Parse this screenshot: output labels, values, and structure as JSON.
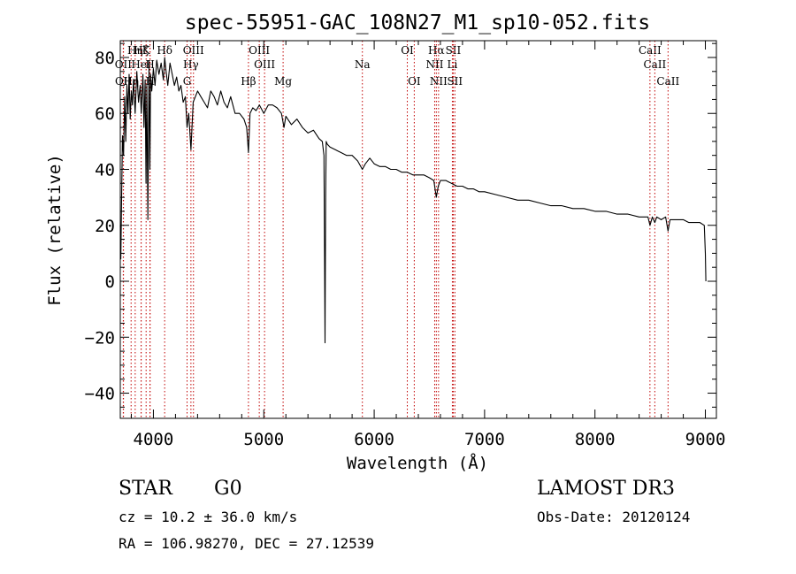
{
  "chart_data": {
    "type": "line",
    "title": "spec-55951-GAC_108N27_M1_sp10-052.fits",
    "xlabel": "Wavelength (Å)",
    "ylabel": "Flux (relative)",
    "xlim": [
      3700,
      9100
    ],
    "ylim": [
      -49,
      86
    ],
    "xticks": [
      4000,
      5000,
      6000,
      7000,
      8000,
      9000
    ],
    "yticks": [
      -40,
      -20,
      0,
      20,
      40,
      60,
      80
    ],
    "grid": false,
    "legend": "none",
    "series": [
      {
        "name": "flux",
        "x": [
          3700,
          3705,
          3712,
          3720,
          3730,
          3740,
          3750,
          3760,
          3770,
          3780,
          3790,
          3800,
          3810,
          3820,
          3835,
          3850,
          3865,
          3880,
          3890,
          3905,
          3915,
          3925,
          3933,
          3940,
          3950,
          3960,
          3968,
          3975,
          3985,
          4000,
          4015,
          4030,
          4050,
          4070,
          4090,
          4102,
          4115,
          4130,
          4150,
          4170,
          4190,
          4210,
          4230,
          4250,
          4270,
          4290,
          4305,
          4320,
          4340,
          4360,
          4380,
          4400,
          4430,
          4460,
          4490,
          4520,
          4550,
          4580,
          4610,
          4640,
          4670,
          4700,
          4740,
          4780,
          4820,
          4845,
          4861,
          4875,
          4900,
          4930,
          4960,
          5000,
          5040,
          5080,
          5120,
          5160,
          5183,
          5200,
          5250,
          5300,
          5350,
          5400,
          5450,
          5500,
          5530,
          5545,
          5555,
          5560,
          5565,
          5575,
          5600,
          5650,
          5700,
          5750,
          5800,
          5850,
          5893,
          5920,
          5960,
          6000,
          6050,
          6100,
          6150,
          6200,
          6250,
          6300,
          6350,
          6400,
          6450,
          6500,
          6540,
          6563,
          6580,
          6600,
          6650,
          6700,
          6750,
          6800,
          6850,
          6900,
          6950,
          7000,
          7100,
          7200,
          7300,
          7400,
          7500,
          7600,
          7700,
          7800,
          7900,
          8000,
          8100,
          8200,
          8300,
          8400,
          8480,
          8498,
          8520,
          8542,
          8560,
          8600,
          8640,
          8662,
          8680,
          8720,
          8760,
          8800,
          8850,
          8900,
          8950,
          8990,
          9000,
          9005
        ],
        "y": [
          20,
          8,
          30,
          52,
          45,
          66,
          50,
          70,
          60,
          74,
          58,
          68,
          63,
          72,
          60,
          75,
          64,
          70,
          60,
          74,
          55,
          72,
          35,
          70,
          22,
          78,
          40,
          74,
          68,
          76,
          70,
          79,
          74,
          78,
          72,
          80,
          75,
          70,
          78,
          74,
          70,
          73,
          68,
          70,
          64,
          66,
          55,
          60,
          47,
          64,
          66,
          68,
          66,
          64,
          62,
          68,
          66,
          63,
          68,
          64,
          62,
          66,
          60,
          60,
          58,
          55,
          46,
          60,
          62,
          61,
          63,
          60,
          63,
          63,
          62,
          60,
          55,
          59,
          56,
          58,
          55,
          53,
          54,
          51,
          50,
          45,
          -22,
          30,
          50,
          49,
          48,
          47,
          46,
          45,
          45,
          43,
          40,
          42,
          44,
          42,
          41,
          41,
          40,
          40,
          39,
          39,
          38,
          38,
          38,
          37,
          36,
          30,
          34,
          36,
          36,
          35,
          34,
          34,
          33,
          33,
          32,
          32,
          31,
          30,
          29,
          29,
          28,
          27,
          27,
          26,
          26,
          25,
          25,
          24,
          24,
          23,
          23,
          20,
          23,
          21,
          23,
          22,
          23,
          18,
          22,
          22,
          22,
          22,
          21,
          21,
          21,
          20,
          10,
          0
        ]
      }
    ],
    "lines": [
      {
        "label": "Hη",
        "x": 3835,
        "row": 1
      },
      {
        "label": "Hζ",
        "x": 3889,
        "row": 1
      },
      {
        "label": "K",
        "x": 3934,
        "row": 1
      },
      {
        "label": "Hδ",
        "x": 4102,
        "row": 1
      },
      {
        "label": "OIII",
        "x": 4363,
        "row": 1
      },
      {
        "label": "OIII",
        "x": 4959,
        "row": 1
      },
      {
        "label": "OI",
        "x": 6300,
        "row": 1
      },
      {
        "label": "Hα",
        "x": 6563,
        "row": 1
      },
      {
        "label": "SII",
        "x": 6716,
        "row": 1
      },
      {
        "label": "CaII",
        "x": 8498,
        "row": 1
      },
      {
        "label": "OII",
        "x": 3727,
        "row": 2
      },
      {
        "label": "HeI",
        "x": 3889,
        "row": 2
      },
      {
        "label": "H",
        "x": 3969,
        "row": 2
      },
      {
        "label": "Hγ",
        "x": 4340,
        "row": 2
      },
      {
        "label": "OIII",
        "x": 5007,
        "row": 2
      },
      {
        "label": "Na",
        "x": 5893,
        "row": 2
      },
      {
        "label": "NII",
        "x": 6548,
        "row": 2
      },
      {
        "label": "Li",
        "x": 6708,
        "row": 2
      },
      {
        "label": "CaII",
        "x": 8542,
        "row": 2
      },
      {
        "label": "OII",
        "x": 3729,
        "row": 3
      },
      {
        "label": "Hη",
        "x": 3798,
        "row": 3
      },
      {
        "label": "H",
        "x": 3970,
        "row": 3
      },
      {
        "label": "G",
        "x": 4305,
        "row": 3
      },
      {
        "label": "Hβ",
        "x": 4861,
        "row": 3
      },
      {
        "label": "Mg",
        "x": 5175,
        "row": 3
      },
      {
        "label": "OI",
        "x": 6363,
        "row": 3
      },
      {
        "label": "NII",
        "x": 6583,
        "row": 3
      },
      {
        "label": "SII",
        "x": 6731,
        "row": 3
      },
      {
        "label": "CaII",
        "x": 8662,
        "row": 3
      }
    ]
  },
  "info": {
    "object_type": "STAR",
    "subclass": "G0",
    "survey": "LAMOST DR3",
    "redshift": "cz = 10.2 ± 36.0 km/s",
    "obs_date": "Obs-Date: 20120124",
    "coords": "RA = 106.98270, DEC =  27.12539"
  }
}
